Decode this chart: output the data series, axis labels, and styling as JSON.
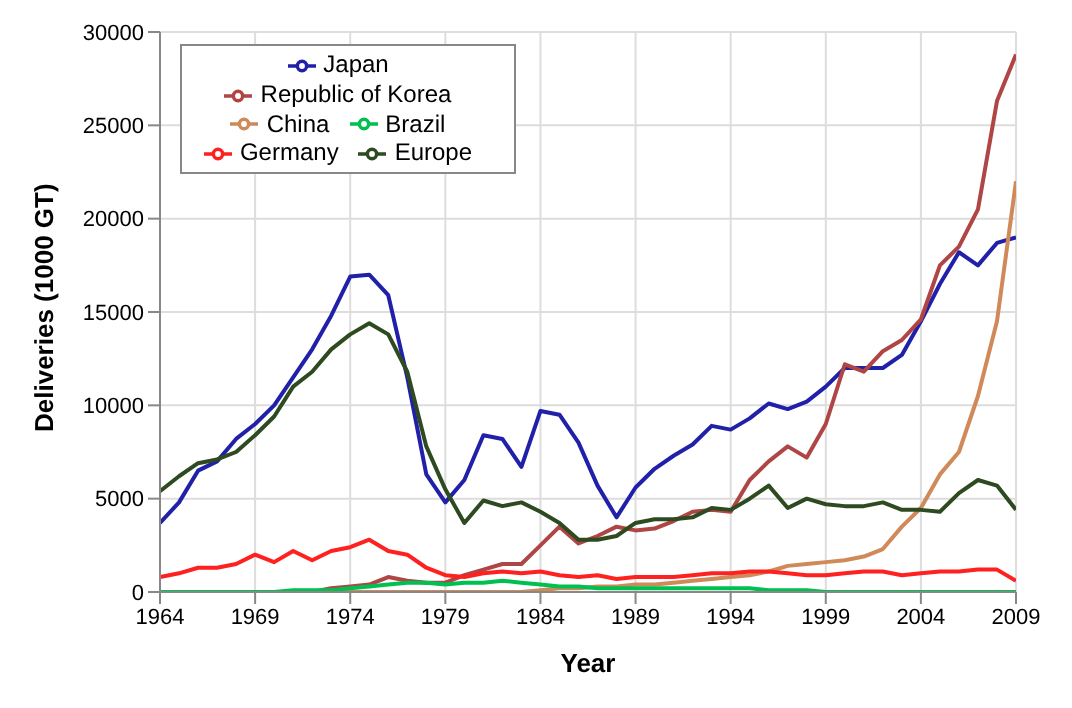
{
  "chart_data": {
    "type": "line",
    "xlabel": "Year",
    "ylabel": "Deliveries (1000 GT)",
    "x": [
      1964,
      1965,
      1966,
      1967,
      1968,
      1969,
      1970,
      1971,
      1972,
      1973,
      1974,
      1975,
      1976,
      1977,
      1978,
      1979,
      1980,
      1981,
      1982,
      1983,
      1984,
      1985,
      1986,
      1987,
      1988,
      1989,
      1990,
      1991,
      1992,
      1993,
      1994,
      1995,
      1996,
      1997,
      1998,
      1999,
      2000,
      2001,
      2002,
      2003,
      2004,
      2005,
      2006,
      2007,
      2008,
      2009
    ],
    "xlim": [
      1964,
      2009
    ],
    "xticks": [
      1964,
      1969,
      1974,
      1979,
      1984,
      1989,
      1994,
      1999,
      2004,
      2009
    ],
    "ylim": [
      0,
      30000
    ],
    "yticks": [
      0,
      5000,
      10000,
      15000,
      20000,
      25000,
      30000
    ],
    "grid": true,
    "legend": "top left",
    "line_style": "solid",
    "marker": "none",
    "series": [
      {
        "name": "Japan",
        "color": "#2020a8",
        "values": [
          3700,
          4800,
          6500,
          7000,
          8200,
          9000,
          10000,
          11500,
          13000,
          14800,
          16900,
          17000,
          15900,
          11500,
          6300,
          4800,
          6000,
          8400,
          8200,
          6700,
          9700,
          9500,
          8000,
          5700,
          4000,
          5600,
          6600,
          7300,
          7900,
          8900,
          8700,
          9300,
          10100,
          9800,
          10200,
          11000,
          12000,
          12000,
          12000,
          12700,
          14500,
          16500,
          18200,
          17500,
          18700,
          19000
        ]
      },
      {
        "name": "Republic of Korea",
        "color": "#b04545",
        "values": [
          null,
          null,
          null,
          null,
          null,
          null,
          null,
          0,
          0,
          200,
          300,
          400,
          800,
          600,
          500,
          500,
          900,
          1200,
          1500,
          1500,
          2500,
          3500,
          2600,
          3000,
          3500,
          3300,
          3400,
          3800,
          4300,
          4400,
          4300,
          6000,
          7000,
          7800,
          7200,
          9000,
          12200,
          11800,
          12900,
          13500,
          14600,
          17500,
          18500,
          20500,
          26300,
          28800
        ]
      },
      {
        "name": "China",
        "color": "#d08a5a",
        "values": [
          null,
          null,
          null,
          null,
          null,
          null,
          null,
          0,
          0,
          0,
          0,
          0,
          0,
          0,
          0,
          0,
          0,
          0,
          0,
          0,
          100,
          200,
          200,
          300,
          300,
          400,
          400,
          500,
          600,
          700,
          800,
          900,
          1100,
          1400,
          1500,
          1600,
          1700,
          1900,
          2300,
          3500,
          4500,
          6300,
          7500,
          10500,
          14500,
          22000
        ]
      },
      {
        "name": "Brazil",
        "color": "#00c050",
        "values": [
          0,
          0,
          0,
          0,
          0,
          0,
          0,
          100,
          100,
          100,
          200,
          300,
          400,
          500,
          500,
          400,
          500,
          500,
          600,
          500,
          400,
          300,
          300,
          200,
          200,
          200,
          200,
          200,
          200,
          200,
          200,
          200,
          100,
          100,
          100,
          0,
          0,
          0,
          0,
          0,
          0,
          0,
          0,
          0,
          0,
          0
        ]
      },
      {
        "name": "Germany",
        "color": "#ff2020",
        "values": [
          800,
          1000,
          1300,
          1300,
          1500,
          2000,
          1600,
          2200,
          1700,
          2200,
          2400,
          2800,
          2200,
          2000,
          1300,
          900,
          800,
          1000,
          1100,
          1000,
          1100,
          900,
          800,
          900,
          700,
          800,
          800,
          800,
          900,
          1000,
          1000,
          1100,
          1100,
          1000,
          900,
          900,
          1000,
          1100,
          1100,
          900,
          1000,
          1100,
          1100,
          1200,
          1200,
          600
        ]
      },
      {
        "name": "Europe",
        "color": "#2e4a20",
        "values": [
          5400,
          6200,
          6900,
          7100,
          7500,
          8400,
          9400,
          11000,
          11800,
          13000,
          13800,
          14400,
          13800,
          11800,
          7800,
          5500,
          3700,
          4900,
          4600,
          4800,
          4300,
          3700,
          2800,
          2800,
          3000,
          3700,
          3900,
          3900,
          4000,
          4500,
          4400,
          5000,
          5700,
          4500,
          5000,
          4700,
          4600,
          4600,
          4800,
          4400,
          4400,
          4300,
          5300,
          6000,
          5700,
          4400
        ]
      }
    ]
  }
}
